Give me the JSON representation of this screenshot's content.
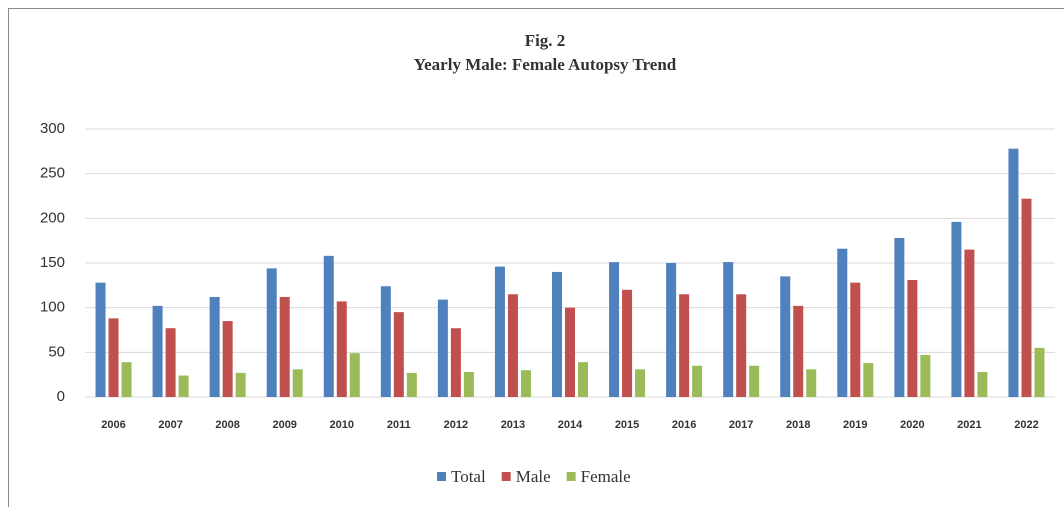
{
  "chart_data": {
    "type": "bar",
    "figure_label": "Fig. 2",
    "title": "Yearly Male: Female Autopsy Trend",
    "categories": [
      "2006",
      "2007",
      "2008",
      "2009",
      "2010",
      "2011",
      "2012",
      "2013",
      "2014",
      "2015",
      "2016",
      "2017",
      "2018",
      "2019",
      "2020",
      "2021",
      "2022"
    ],
    "series": [
      {
        "name": "Total",
        "color": "#4f81bd",
        "values": [
          128,
          102,
          112,
          144,
          158,
          124,
          109,
          146,
          140,
          151,
          150,
          151,
          135,
          166,
          178,
          196,
          278
        ]
      },
      {
        "name": "Male",
        "color": "#c0504d",
        "values": [
          88,
          77,
          85,
          112,
          107,
          95,
          77,
          115,
          100,
          120,
          115,
          115,
          102,
          128,
          131,
          165,
          222
        ]
      },
      {
        "name": "Female",
        "color": "#9bbb59",
        "values": [
          39,
          24,
          27,
          31,
          49,
          27,
          28,
          30,
          39,
          31,
          35,
          35,
          31,
          38,
          47,
          28,
          55
        ]
      }
    ],
    "ylim": [
      0,
      300
    ],
    "yticks": [
      0,
      50,
      100,
      150,
      200,
      250,
      300
    ],
    "grid": true,
    "legend": "bottom"
  }
}
